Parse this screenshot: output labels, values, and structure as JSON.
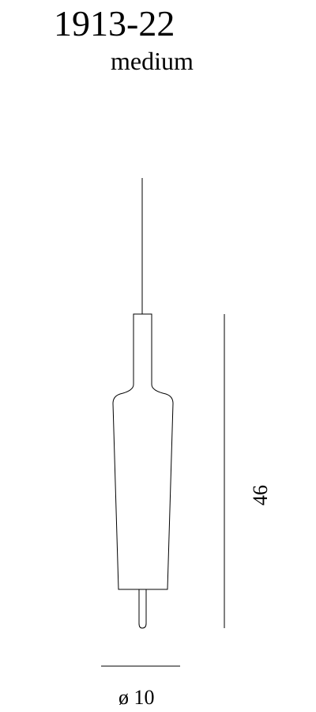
{
  "header": {
    "model_number": "1913-22",
    "size_label": "medium"
  },
  "dimensions": {
    "height_value": "46",
    "diameter_value": "ø 10"
  }
}
